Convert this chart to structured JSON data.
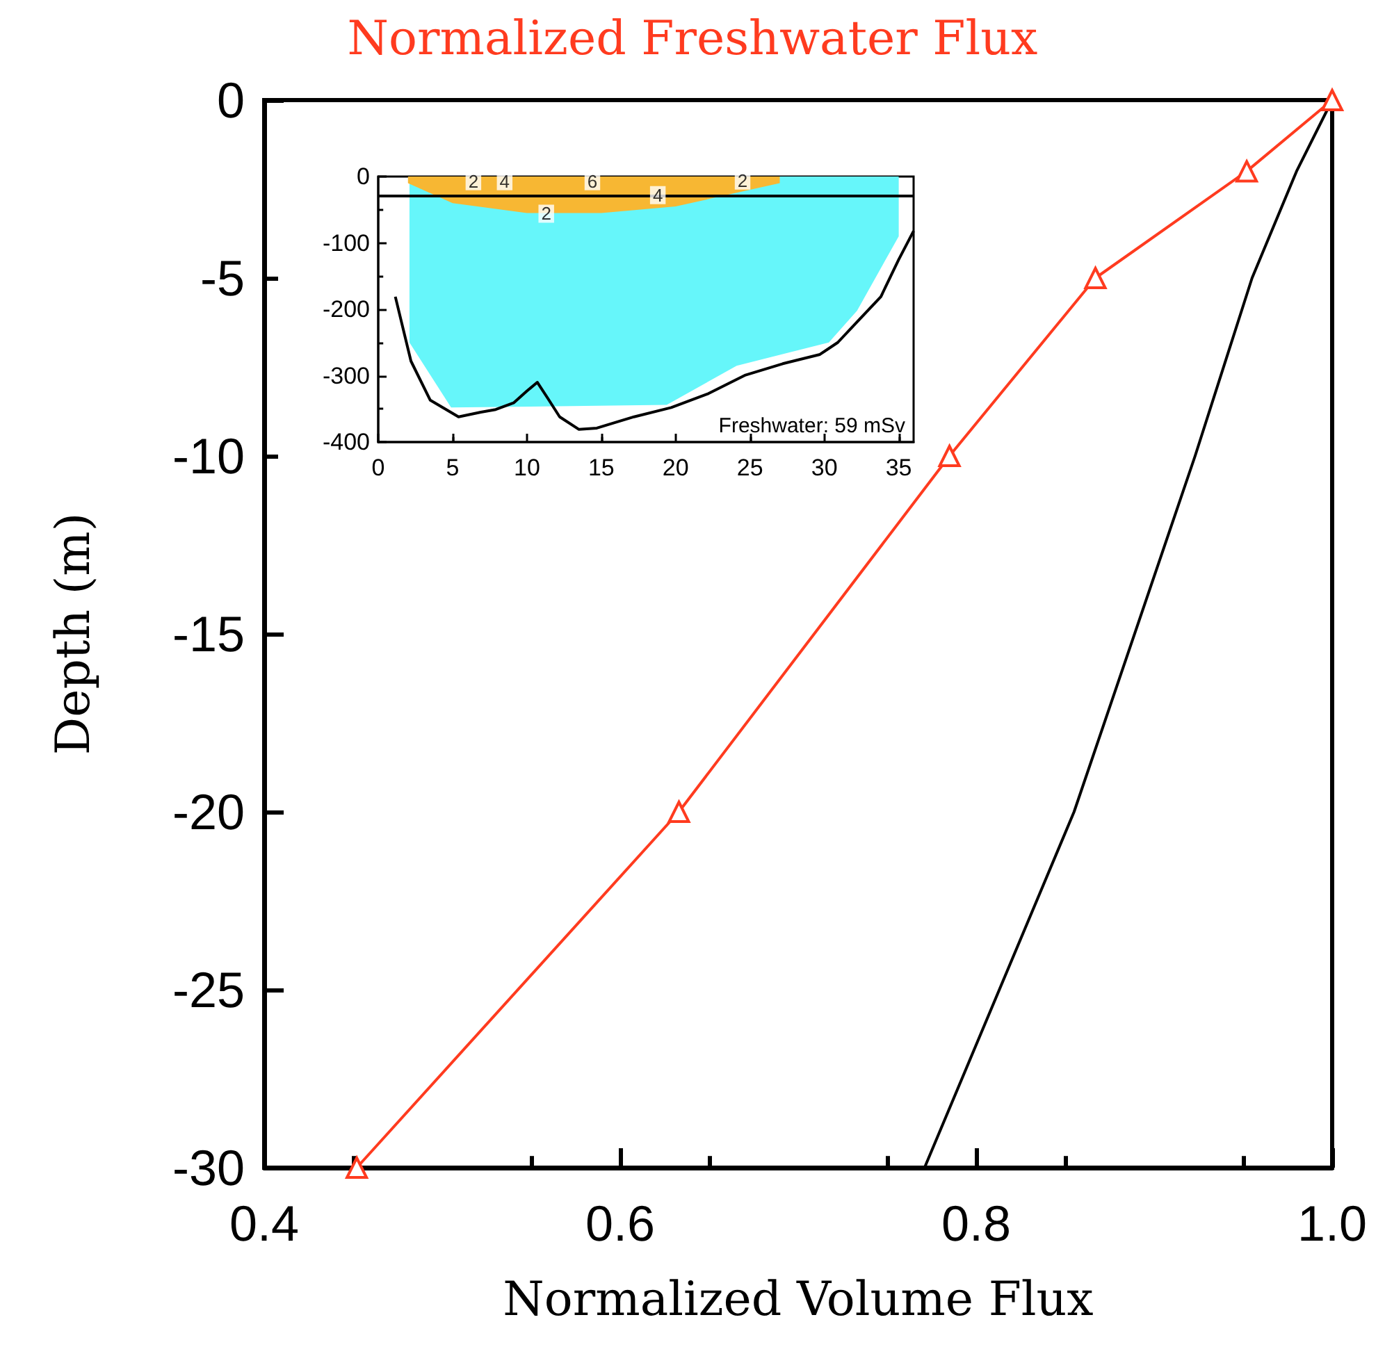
{
  "chart_data": [
    {
      "type": "line",
      "title": "Normalized Freshwater Flux",
      "xlabel": "Normalized Volume Flux",
      "ylabel": "Depth (m)",
      "xlim": [
        0.4,
        1.0
      ],
      "xticks": [
        0.4,
        0.6,
        0.8,
        {
          "value": 1,
          "label": "1.0"
        }
      ],
      "ylim": [
        -30,
        0
      ],
      "yticks": [
        -30,
        -25,
        -20,
        -15,
        -10,
        -5,
        0
      ],
      "grid": false,
      "series": [
        {
          "color": "#ff3b1f",
          "marker": "triangle",
          "x": [
            1.0,
            0.952,
            0.867,
            0.785,
            0.633,
            0.452
          ],
          "values": [
            0,
            -2,
            -5,
            -10,
            -20,
            -30
          ]
        },
        {
          "color": "#000000",
          "marker": "none",
          "x": [
            1.0,
            0.98,
            0.955,
            0.923,
            0.855,
            0.771
          ],
          "values": [
            0,
            -2,
            -5,
            -10,
            -20,
            -30
          ]
        }
      ]
    },
    {
      "type": "area",
      "xlim": [
        0,
        36
      ],
      "xticks": [
        0,
        5,
        10,
        15,
        20,
        25,
        30,
        35
      ],
      "ylim": [
        -400,
        0
      ],
      "yticks": [
        -400,
        -300,
        -200,
        -100,
        0
      ],
      "grid": false,
      "series": [
        {
          "color": "#66f6fa",
          "x": [
            2.1,
            4.9,
            19.4,
            24.1,
            30.3,
            32.2,
            35
          ],
          "values": [
            -250,
            -348,
            -344,
            -285,
            -250,
            -202,
            -90
          ]
        },
        {
          "color": "#f7b733",
          "x": [
            2,
            5,
            10,
            15,
            20,
            25,
            27
          ],
          "values": [
            -10,
            -40,
            -55,
            -55,
            -45,
            -20,
            -10
          ]
        },
        {
          "type": "line",
          "color": "#000000",
          "x": [
            1.15,
            2.2,
            3.5,
            5.4,
            6.9,
            7.9,
            9.1,
            10.0,
            10.7,
            11.4,
            12.2,
            13.5,
            14.7,
            17.2,
            19.7,
            22.2,
            24.7,
            27.2,
            29.7,
            30.9,
            32.2,
            33.8,
            35,
            36
          ],
          "values": [
            -181,
            -278,
            -337,
            -362,
            -355,
            -351,
            -341,
            -323,
            -310,
            -334,
            -362,
            -381,
            -379,
            -362,
            -348,
            -327,
            -299,
            -282,
            -268,
            -250,
            -219,
            -181,
            -125,
            -82
          ]
        }
      ],
      "ref_lines": [
        {
          "axis": "y",
          "value": -28,
          "color": "#000000"
        }
      ],
      "annotations": [
        {
          "text": "2",
          "x": 6.4,
          "y": -7
        },
        {
          "text": "4",
          "x": 8.5,
          "y": -7
        },
        {
          "text": "6",
          "x": 14.4,
          "y": -7
        },
        {
          "text": "4",
          "x": 18.8,
          "y": -28
        },
        {
          "text": "2",
          "x": 24.5,
          "y": -6
        },
        {
          "text": "2",
          "x": 11.3,
          "y": -56
        },
        "Freshwater: 59 mSv"
      ]
    }
  ]
}
